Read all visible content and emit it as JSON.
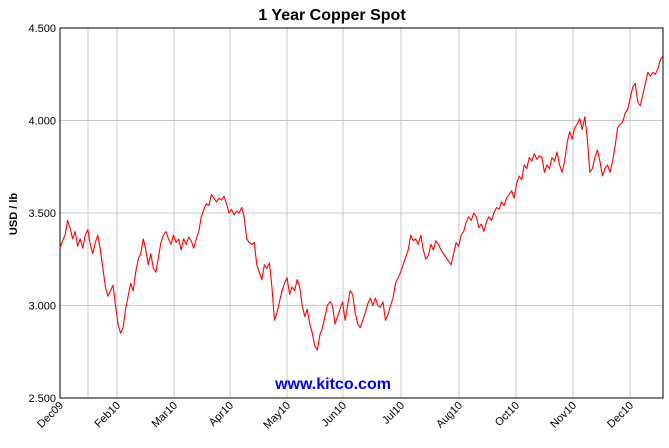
{
  "colors": {
    "line": "#ff0000",
    "grid": "#c8c8c8",
    "axis": "#000000",
    "watermark": "#0000ff"
  },
  "watermark": "www.kitco.com",
  "chart_data": {
    "type": "line",
    "title": "1 Year Copper Spot",
    "ylabel": "USD / lb",
    "xlabel": "",
    "ylim": [
      2.5,
      4.5
    ],
    "yticks": [
      "2.500",
      "3.000",
      "3.500",
      "4.000",
      "4.500"
    ],
    "x_ticks": [
      "Dec09",
      "Feb10",
      "Mar10",
      "Apr10",
      "May10",
      "Jun10",
      "Jul10",
      "Aug10",
      "Oct10",
      "Nov10",
      "Dec10"
    ],
    "grid": true,
    "series": [
      {
        "values": [
          3.31,
          3.35,
          3.38,
          3.46,
          3.42,
          3.36,
          3.4,
          3.32,
          3.36,
          3.31,
          3.38,
          3.41,
          3.33,
          3.28,
          3.34,
          3.38,
          3.3,
          3.2,
          3.1,
          3.05,
          3.08,
          3.11,
          3.0,
          2.9,
          2.85,
          2.88,
          2.98,
          3.05,
          3.12,
          3.08,
          3.18,
          3.25,
          3.28,
          3.36,
          3.3,
          3.22,
          3.28,
          3.2,
          3.18,
          3.26,
          3.34,
          3.38,
          3.4,
          3.36,
          3.33,
          3.38,
          3.34,
          3.36,
          3.3,
          3.36,
          3.33,
          3.37,
          3.35,
          3.31,
          3.36,
          3.4,
          3.48,
          3.52,
          3.55,
          3.54,
          3.6,
          3.58,
          3.56,
          3.58,
          3.57,
          3.59,
          3.55,
          3.5,
          3.52,
          3.49,
          3.51,
          3.5,
          3.53,
          3.48,
          3.36,
          3.34,
          3.33,
          3.34,
          3.22,
          3.18,
          3.14,
          3.22,
          3.2,
          3.23,
          3.1,
          2.92,
          2.96,
          3.02,
          3.08,
          3.12,
          3.15,
          3.06,
          3.1,
          3.08,
          3.14,
          3.1,
          3.0,
          2.94,
          2.98,
          2.9,
          2.85,
          2.78,
          2.76,
          2.84,
          2.88,
          2.94,
          3.0,
          3.02,
          3.0,
          2.9,
          2.94,
          2.98,
          3.02,
          2.92,
          3.0,
          3.08,
          3.06,
          2.96,
          2.9,
          2.88,
          2.92,
          2.96,
          3.01,
          3.04,
          3.0,
          3.04,
          3.0,
          2.99,
          3.02,
          2.92,
          2.95,
          3.0,
          3.04,
          3.12,
          3.15,
          3.18,
          3.22,
          3.26,
          3.3,
          3.38,
          3.35,
          3.36,
          3.33,
          3.38,
          3.3,
          3.25,
          3.27,
          3.33,
          3.3,
          3.35,
          3.33,
          3.3,
          3.28,
          3.26,
          3.24,
          3.22,
          3.28,
          3.34,
          3.32,
          3.38,
          3.4,
          3.45,
          3.48,
          3.46,
          3.5,
          3.48,
          3.42,
          3.44,
          3.4,
          3.45,
          3.48,
          3.46,
          3.5,
          3.53,
          3.52,
          3.56,
          3.54,
          3.58,
          3.6,
          3.62,
          3.58,
          3.66,
          3.7,
          3.68,
          3.76,
          3.74,
          3.8,
          3.78,
          3.82,
          3.79,
          3.81,
          3.8,
          3.72,
          3.76,
          3.74,
          3.8,
          3.78,
          3.83,
          3.76,
          3.72,
          3.78,
          3.88,
          3.94,
          3.9,
          3.96,
          3.98,
          4.01,
          3.95,
          4.02,
          3.9,
          3.72,
          3.74,
          3.8,
          3.84,
          3.78,
          3.7,
          3.74,
          3.76,
          3.72,
          3.78,
          3.86,
          3.96,
          3.98,
          3.99,
          4.04,
          4.06,
          4.12,
          4.18,
          4.2,
          4.1,
          4.08,
          4.14,
          4.2,
          4.26,
          4.24,
          4.26,
          4.25,
          4.28,
          4.33,
          4.35
        ]
      }
    ]
  }
}
